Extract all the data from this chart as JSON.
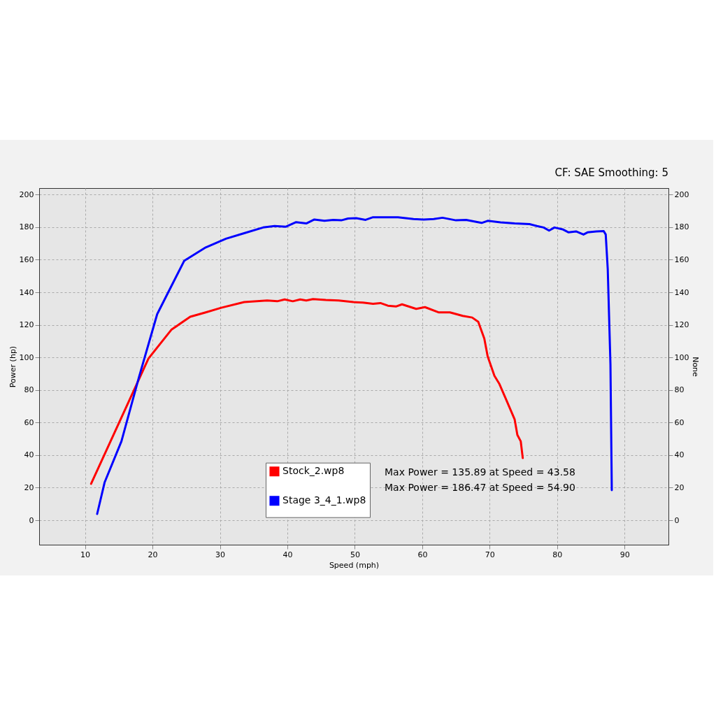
{
  "chart_data": {
    "type": "line",
    "xlabel": "Speed (mph)",
    "ylabel": "Power (hp)",
    "y2label": "None",
    "annotations": [
      "CF: SAE Smoothing: 5",
      "Max Power = 135.89 at Speed = 43.58",
      "Max Power = 186.47 at Speed = 54.90"
    ],
    "xlim": [
      3.2,
      96.5
    ],
    "xticks": [
      10,
      20,
      30,
      40,
      50,
      60,
      70,
      80,
      90
    ],
    "ylim": [
      -15,
      204
    ],
    "yticks": [
      0,
      20,
      40,
      60,
      80,
      100,
      120,
      140,
      160,
      180,
      200
    ],
    "y2lim": [
      -15,
      204
    ],
    "y2ticks": [
      0,
      20,
      40,
      60,
      80,
      100,
      120,
      140,
      160,
      180,
      200
    ],
    "grid": true,
    "legend": "bottom",
    "line_style": "solid",
    "series": [
      {
        "name": "Stock_2.wp8",
        "color": "#ff0000",
        "x": [
          10.9,
          19.4,
          22.8,
          25.6,
          27.9,
          30.2,
          33.6,
          37.0,
          38.5,
          39.6,
          40.8,
          41.9,
          42.8,
          43.8,
          45.7,
          47.6,
          49.8,
          51.2,
          52.7,
          53.8,
          54.9,
          56.1,
          57.0,
          59.1,
          60.4,
          62.4,
          64.1,
          66.0,
          67.4,
          68.3,
          69.2,
          69.7,
          70.7,
          71.4,
          72.4,
          73.7,
          74.1,
          74.6,
          74.9
        ],
        "values": [
          22.4,
          99.3,
          117,
          125,
          127.7,
          130.5,
          134,
          135,
          134.5,
          135.6,
          134.5,
          135.6,
          135,
          135.8,
          135.3,
          135,
          134,
          133.7,
          132.9,
          133.4,
          131.8,
          131.3,
          132.6,
          129.8,
          130.9,
          127.7,
          127.7,
          125.5,
          124.5,
          121.9,
          111.6,
          100.6,
          88.7,
          84,
          74.5,
          61.9,
          52.4,
          48.5,
          38.2
        ]
      },
      {
        "name": "Stage 3_4_1.wp8",
        "color": "#0000ff",
        "x": [
          11.8,
          12.9,
          15.4,
          18.0,
          20.7,
          24.7,
          27.9,
          30.9,
          33.6,
          36.4,
          38.1,
          39.8,
          41.3,
          42.8,
          44.0,
          45.5,
          46.8,
          48.0,
          49.0,
          50.2,
          51.6,
          52.7,
          56.4,
          58.7,
          60.2,
          61.7,
          63.0,
          65.0,
          66.5,
          68.8,
          69.7,
          71.6,
          73.7,
          75.9,
          77.0,
          78.0,
          78.8,
          79.6,
          80.8,
          81.7,
          82.8,
          83.9,
          84.5,
          85.8,
          86.9,
          87.2,
          87.5,
          87.9,
          88.1
        ],
        "values": [
          3.9,
          23.2,
          48.5,
          87.9,
          126.6,
          159.3,
          167.6,
          172.9,
          176.3,
          179.8,
          180.7,
          180.3,
          183.1,
          182.3,
          184.7,
          183.9,
          184.5,
          184.2,
          185.3,
          185.5,
          184.5,
          186.1,
          186.1,
          185,
          184.7,
          185,
          185.8,
          184.2,
          184.5,
          182.6,
          183.9,
          183,
          182.3,
          181.9,
          180.7,
          179.8,
          177.9,
          179.8,
          178.7,
          176.8,
          177.4,
          175.5,
          176.8,
          177.4,
          177.6,
          175.5,
          154.2,
          95.8,
          18.5
        ]
      }
    ]
  }
}
